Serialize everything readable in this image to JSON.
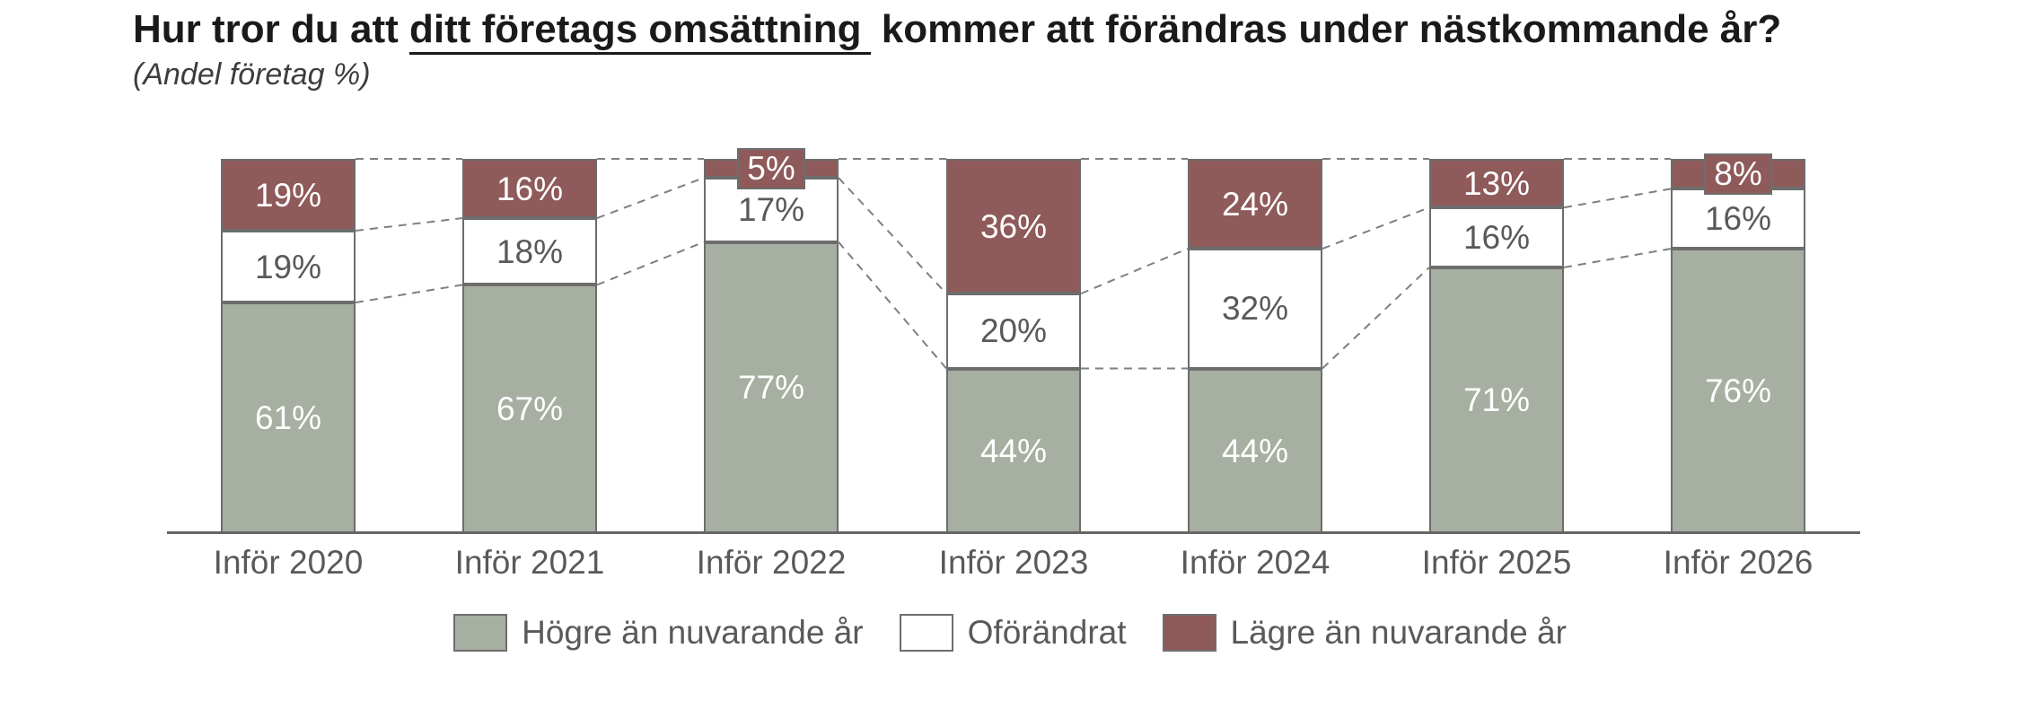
{
  "title": {
    "pre": "Hur tror du att ",
    "underlined": "ditt företags omsättning",
    "post": " kommer att förändras under nästkommande år?"
  },
  "subtitle": "(Andel företag %)",
  "chart_data": {
    "type": "bar",
    "stacked": true,
    "unit": "%",
    "title": "Hur tror du att ditt företags omsättning kommer att förändras under nästkommande år?",
    "subtitle": "(Andel företag %)",
    "categories": [
      "Inför 2020",
      "Inför 2021",
      "Inför 2022",
      "Inför 2023",
      "Inför 2024",
      "Inför 2025",
      "Inför 2026"
    ],
    "series": [
      {
        "name": "Högre än nuvarande år",
        "color": "#a6afa1",
        "text_color": "#ffffff",
        "values": [
          61,
          67,
          77,
          44,
          44,
          71,
          76
        ],
        "labels": [
          "61%",
          "67%",
          "77%",
          "44%",
          "44%",
          "71%",
          "76%"
        ]
      },
      {
        "name": "Oförändrat",
        "color": "#ffffff",
        "text_color": "#595959",
        "values": [
          19,
          18,
          17,
          20,
          32,
          16,
          16
        ],
        "labels": [
          "19%",
          "18%",
          "17%",
          "20%",
          "32%",
          "16%",
          "16%"
        ]
      },
      {
        "name": "Lägre än nuvarande år",
        "color": "#8f5a5a",
        "text_color": "#ffffff",
        "values": [
          19,
          16,
          5,
          36,
          24,
          13,
          8
        ],
        "labels": [
          "19%",
          "16%",
          "5%",
          "36%",
          "24%",
          "13%",
          "8%"
        ]
      }
    ],
    "ylim": [
      0,
      100
    ],
    "grid": false,
    "axis_color": "#666666",
    "connector_line_style": "dashed",
    "connector_line_color": "#7f7f7f",
    "legend_position": "bottom"
  }
}
